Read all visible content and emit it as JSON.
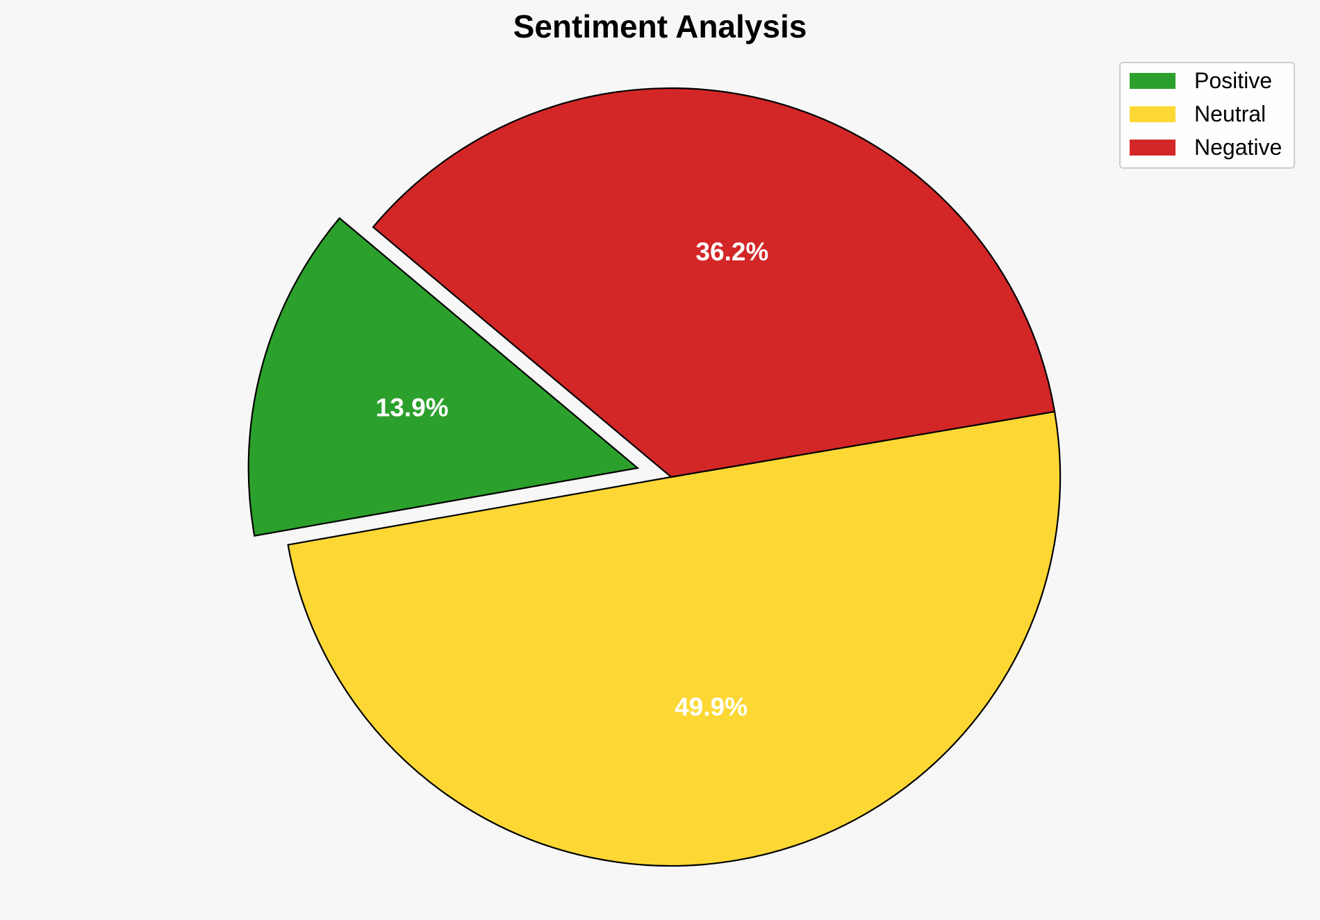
{
  "chart_data": {
    "type": "pie",
    "title": "Sentiment Analysis",
    "labels": [
      "Positive",
      "Neutral",
      "Negative"
    ],
    "values": [
      13.9,
      49.9,
      36.2
    ],
    "value_labels": [
      "13.9%",
      "49.9%",
      "36.2%"
    ],
    "colors": [
      "#2ca02c",
      "#fdd835",
      "#d32627"
    ],
    "exploded": [
      true,
      false,
      false
    ],
    "start_angle_deg": 140,
    "direction": "counterclockwise",
    "edge_color": "#000000",
    "label_color": "#ffffff",
    "legend": {
      "position": "top-right",
      "entries": [
        "Positive",
        "Neutral",
        "Negative"
      ]
    }
  }
}
